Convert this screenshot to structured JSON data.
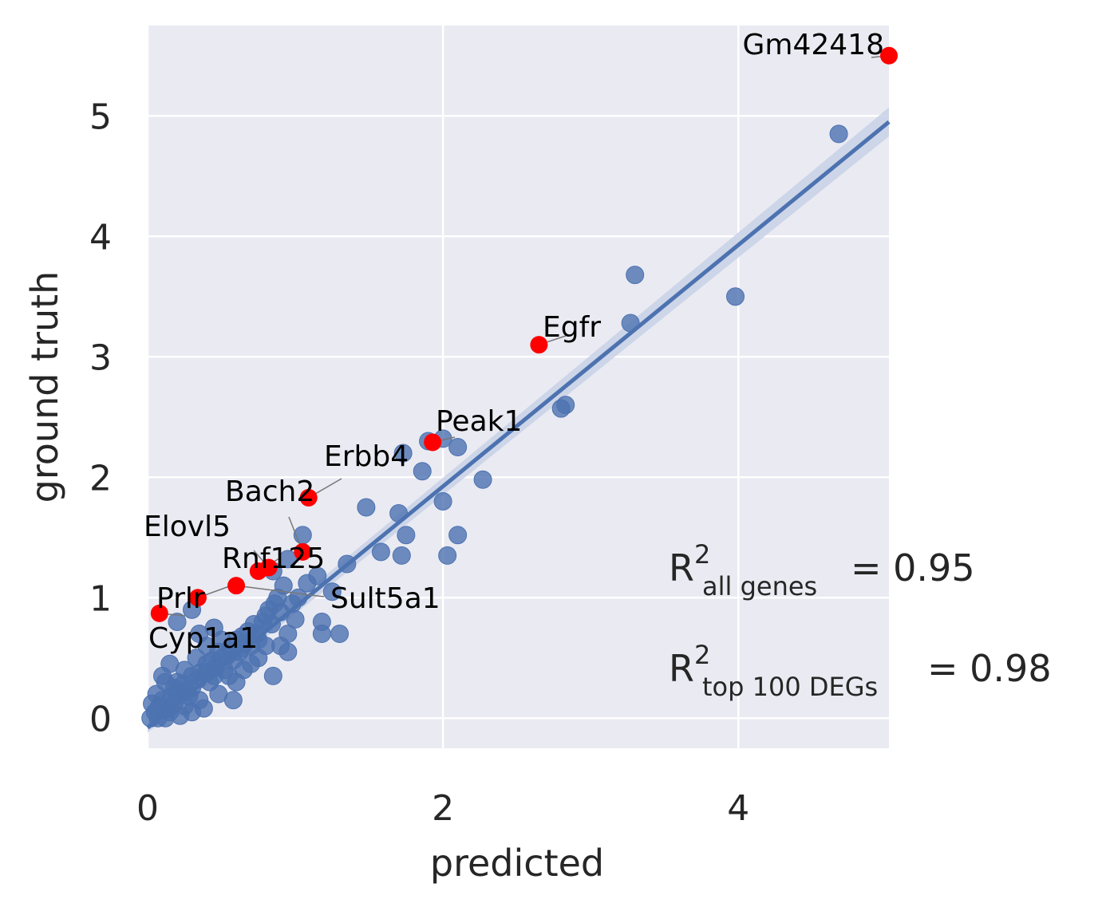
{
  "chart_data": {
    "type": "scatter",
    "xlabel": "predicted",
    "ylabel": "ground truth",
    "xlim": [
      0,
      5.02
    ],
    "ylim": [
      -0.25,
      5.75
    ],
    "x_ticks": [
      "0",
      "2",
      "4"
    ],
    "x_tick_values": [
      0,
      2,
      4
    ],
    "y_ticks": [
      "0",
      "1",
      "2",
      "3",
      "4",
      "5"
    ],
    "y_tick_values": [
      0,
      1,
      2,
      3,
      4,
      5
    ],
    "grid": true,
    "colors": {
      "background": "#EAEAF2",
      "points": "#4C72B0",
      "highlight": "#FF0000",
      "regression": "#4C72B0",
      "band": "#C8D1E6",
      "connector": "#777777"
    },
    "regression_line": {
      "x": [
        0,
        5.02
      ],
      "y": [
        -0.08,
        4.95
      ]
    },
    "confidence_band": {
      "x": [
        0,
        5.02
      ],
      "y_low": [
        -0.12,
        4.83
      ],
      "y_high": [
        -0.04,
        5.07
      ]
    },
    "series": [
      {
        "points": [
          [
            4.68,
            4.85
          ],
          [
            3.3,
            3.68
          ],
          [
            3.98,
            3.5
          ],
          [
            3.27,
            3.28
          ],
          [
            2.83,
            2.6
          ],
          [
            2.8,
            2.57
          ],
          [
            2.0,
            2.32
          ],
          [
            2.1,
            2.25
          ],
          [
            1.9,
            2.3
          ],
          [
            1.73,
            2.2
          ],
          [
            1.86,
            2.05
          ],
          [
            2.27,
            1.98
          ],
          [
            2.0,
            1.8
          ],
          [
            1.48,
            1.75
          ],
          [
            1.7,
            1.7
          ],
          [
            1.75,
            1.52
          ],
          [
            2.1,
            1.52
          ],
          [
            1.05,
            1.52
          ],
          [
            1.58,
            1.38
          ],
          [
            1.72,
            1.35
          ],
          [
            2.03,
            1.35
          ],
          [
            1.35,
            1.28
          ],
          [
            0.95,
            1.32
          ],
          [
            1.15,
            1.18
          ],
          [
            1.25,
            1.05
          ],
          [
            0.85,
            1.22
          ],
          [
            0.9,
            0.88
          ],
          [
            1.0,
            0.82
          ],
          [
            1.18,
            0.8
          ],
          [
            1.3,
            0.7
          ],
          [
            1.18,
            0.7
          ],
          [
            0.95,
            0.7
          ],
          [
            0.7,
            0.6
          ],
          [
            0.45,
            0.75
          ],
          [
            0.6,
            0.65
          ],
          [
            0.3,
            0.9
          ],
          [
            0.35,
            0.7
          ],
          [
            0.2,
            0.8
          ],
          [
            0.85,
            0.35
          ],
          [
            0.58,
            0.15
          ],
          [
            0.15,
            0.45
          ],
          [
            0.25,
            0.4
          ],
          [
            0.4,
            0.45
          ],
          [
            0.5,
            0.5
          ],
          [
            0.55,
            0.35
          ],
          [
            0.65,
            0.4
          ],
          [
            0.75,
            0.5
          ],
          [
            0.8,
            0.6
          ],
          [
            0.3,
            0.25
          ],
          [
            0.35,
            0.15
          ],
          [
            0.42,
            0.3
          ],
          [
            0.48,
            0.2
          ],
          [
            0.2,
            0.2
          ],
          [
            0.25,
            0.1
          ],
          [
            0.3,
            0.05
          ],
          [
            0.1,
            0.15
          ],
          [
            0.15,
            0.05
          ],
          [
            0.05,
            0.05
          ],
          [
            0.02,
            0.0
          ],
          [
            0.08,
            0.1
          ],
          [
            0.12,
            0.0
          ],
          [
            0.18,
            0.12
          ],
          [
            0.22,
            0.02
          ],
          [
            0.28,
            0.18
          ],
          [
            0.38,
            0.08
          ],
          [
            0.45,
            0.35
          ],
          [
            0.52,
            0.4
          ],
          [
            0.6,
            0.3
          ],
          [
            0.7,
            0.45
          ],
          [
            0.75,
            0.65
          ],
          [
            0.9,
            0.6
          ],
          [
            0.95,
            0.55
          ],
          [
            0.12,
            0.3
          ],
          [
            0.18,
            0.25
          ],
          [
            0.06,
            0.2
          ],
          [
            0.33,
            0.5
          ],
          [
            0.4,
            0.6
          ],
          [
            0.1,
            0.35
          ],
          [
            0.5,
            0.65
          ],
          [
            0.62,
            0.55
          ],
          [
            0.68,
            0.72
          ],
          [
            0.78,
            0.8
          ],
          [
            0.82,
            0.9
          ],
          [
            0.88,
            1.0
          ],
          [
            0.92,
            1.1
          ],
          [
            1.02,
            1.0
          ],
          [
            1.08,
            1.12
          ],
          [
            0.98,
            0.95
          ],
          [
            0.03,
            0.12
          ],
          [
            0.16,
            0.18
          ],
          [
            0.24,
            0.28
          ],
          [
            0.36,
            0.38
          ],
          [
            0.44,
            0.48
          ],
          [
            0.56,
            0.58
          ],
          [
            0.64,
            0.68
          ],
          [
            0.72,
            0.78
          ],
          [
            0.8,
            0.85
          ],
          [
            0.86,
            0.95
          ],
          [
            0.14,
            0.08
          ],
          [
            0.26,
            0.22
          ],
          [
            0.34,
            0.32
          ],
          [
            0.46,
            0.42
          ],
          [
            0.54,
            0.52
          ],
          [
            0.66,
            0.62
          ],
          [
            0.74,
            0.7
          ],
          [
            0.84,
            0.78
          ],
          [
            0.07,
            0.0
          ],
          [
            0.2,
            0.3
          ],
          [
            0.3,
            0.35
          ],
          [
            0.4,
            0.38
          ],
          [
            0.48,
            0.55
          ],
          [
            0.58,
            0.48
          ],
          [
            0.64,
            0.58
          ]
        ]
      }
    ],
    "highlighted": [
      {
        "gene": "Gm42418",
        "x": 5.02,
        "y": 5.5
      },
      {
        "gene": "Egfr",
        "x": 2.65,
        "y": 3.1
      },
      {
        "gene": "Peak1",
        "x": 1.93,
        "y": 2.29
      },
      {
        "gene": "Erbb4",
        "x": 1.09,
        "y": 1.83
      },
      {
        "gene": "Bach2",
        "x": 1.05,
        "y": 1.38
      },
      {
        "gene": "Elovl5",
        "x": 0.82,
        "y": 1.25
      },
      {
        "gene": "Rnf125",
        "x": 0.75,
        "y": 1.22
      },
      {
        "gene": "Sult5a1",
        "x": 0.6,
        "y": 1.1
      },
      {
        "gene": "Prlr",
        "x": 0.34,
        "y": 1.0
      },
      {
        "gene": "Cyp1a1",
        "x": 0.08,
        "y": 0.87
      }
    ],
    "annotations": {
      "r2_all": {
        "sub": "all genes",
        "value": "= 0.95"
      },
      "r2_top": {
        "sub": "top 100 DEGs",
        "value": "= 0.98"
      }
    }
  }
}
